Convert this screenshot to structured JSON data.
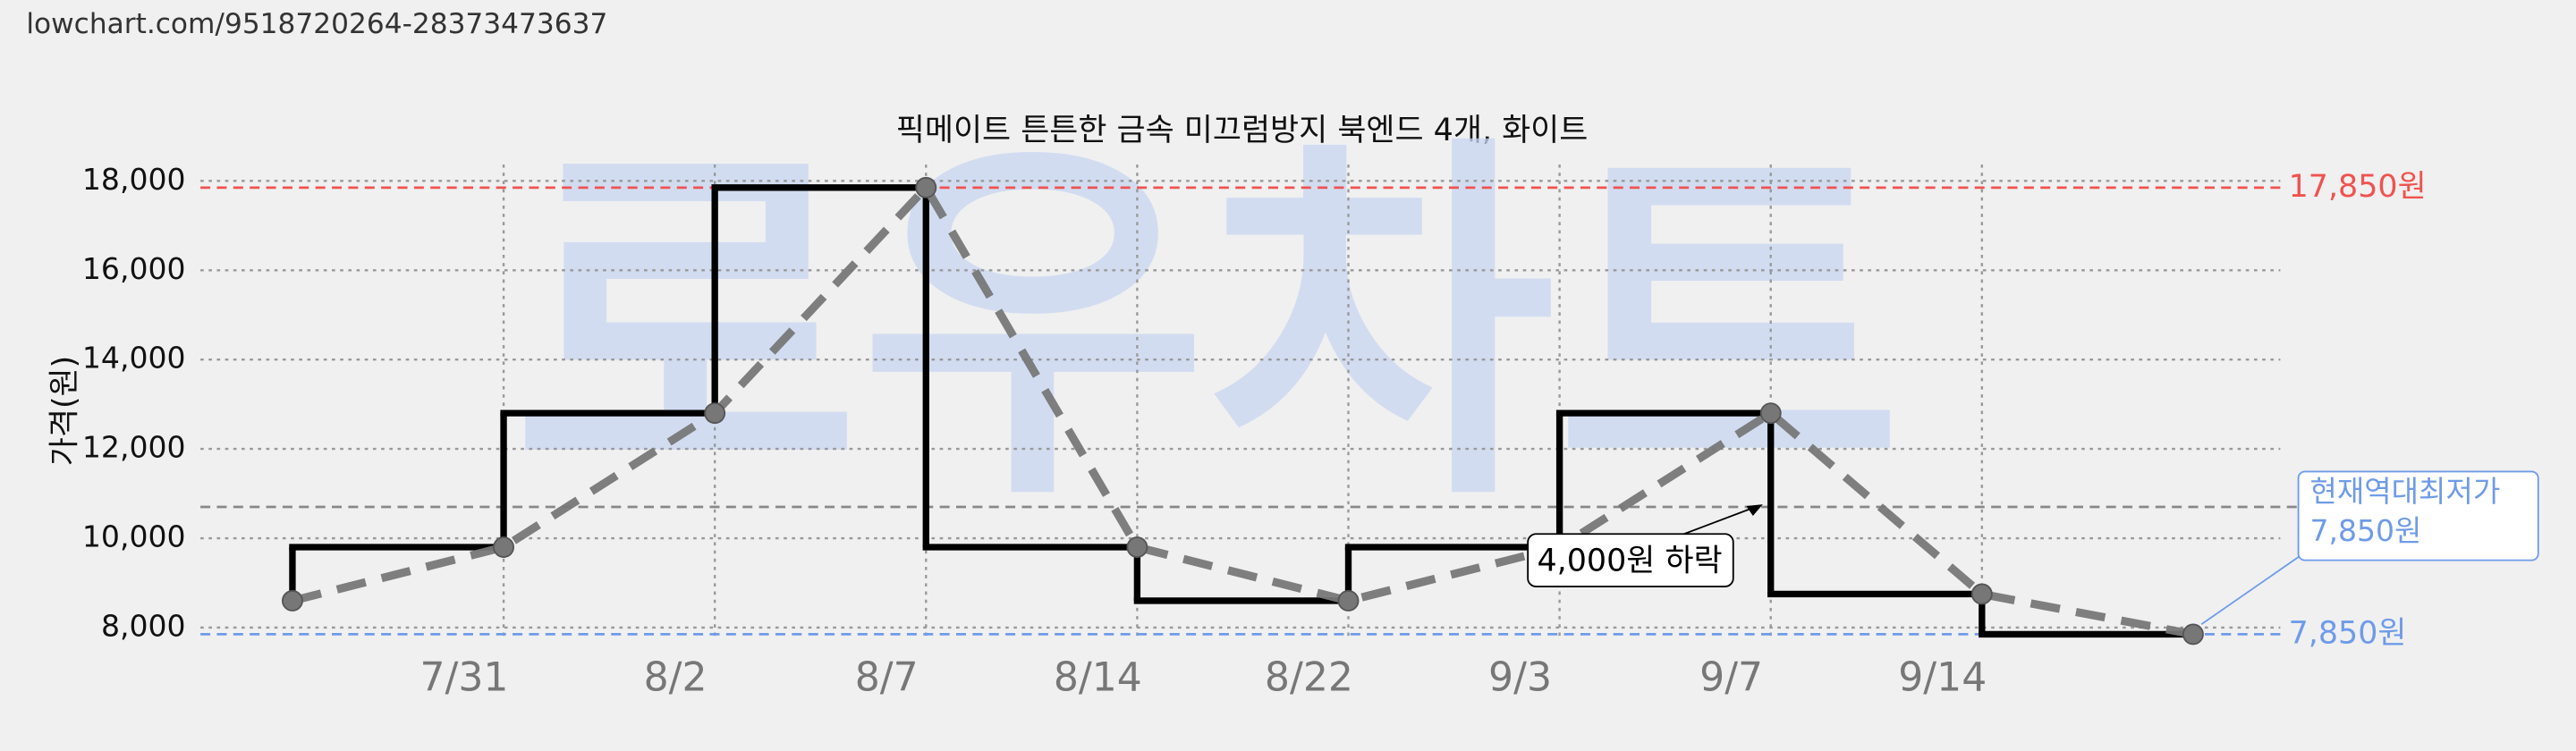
{
  "url": "lowchart.com/9518720264-28373473637",
  "chart_data": {
    "type": "line",
    "title": "픽메이트 튼튼한 금속 미끄럼방지 북엔드 4개, 화이트",
    "ylabel": "가격(원)",
    "watermark": "로우차트",
    "categories": [
      null,
      "7/31",
      "8/2",
      "8/7",
      "8/14",
      "8/22",
      "9/3",
      "9/7",
      "9/14",
      null
    ],
    "series": [
      {
        "color": "#777777",
        "step_color": "#000000",
        "values": [
          8600,
          9800,
          12800,
          17850,
          9800,
          8600,
          9800,
          12800,
          8750,
          7850
        ]
      }
    ],
    "ylim": [
      8000,
      18000
    ],
    "yticks": [
      {
        "value": 8000,
        "label": "8,000"
      },
      {
        "value": 10000,
        "label": "10,000"
      },
      {
        "value": 12000,
        "label": "12,000"
      },
      {
        "value": 14000,
        "label": "14,000"
      },
      {
        "value": 16000,
        "label": "16,000"
      },
      {
        "value": 18000,
        "label": "18,000"
      }
    ],
    "grid": true,
    "reference_lines": [
      {
        "value": 17850,
        "label": "17,850원",
        "color": "#ef5350"
      },
      {
        "value": 7850,
        "label": "7,850원",
        "color": "#6f9be8"
      },
      {
        "value": 10700,
        "color": "#888888"
      }
    ],
    "annotations": [
      {
        "text": "4,000원 하락"
      },
      {
        "lines": [
          "현재역대최저가",
          "7,850원"
        ]
      }
    ]
  }
}
